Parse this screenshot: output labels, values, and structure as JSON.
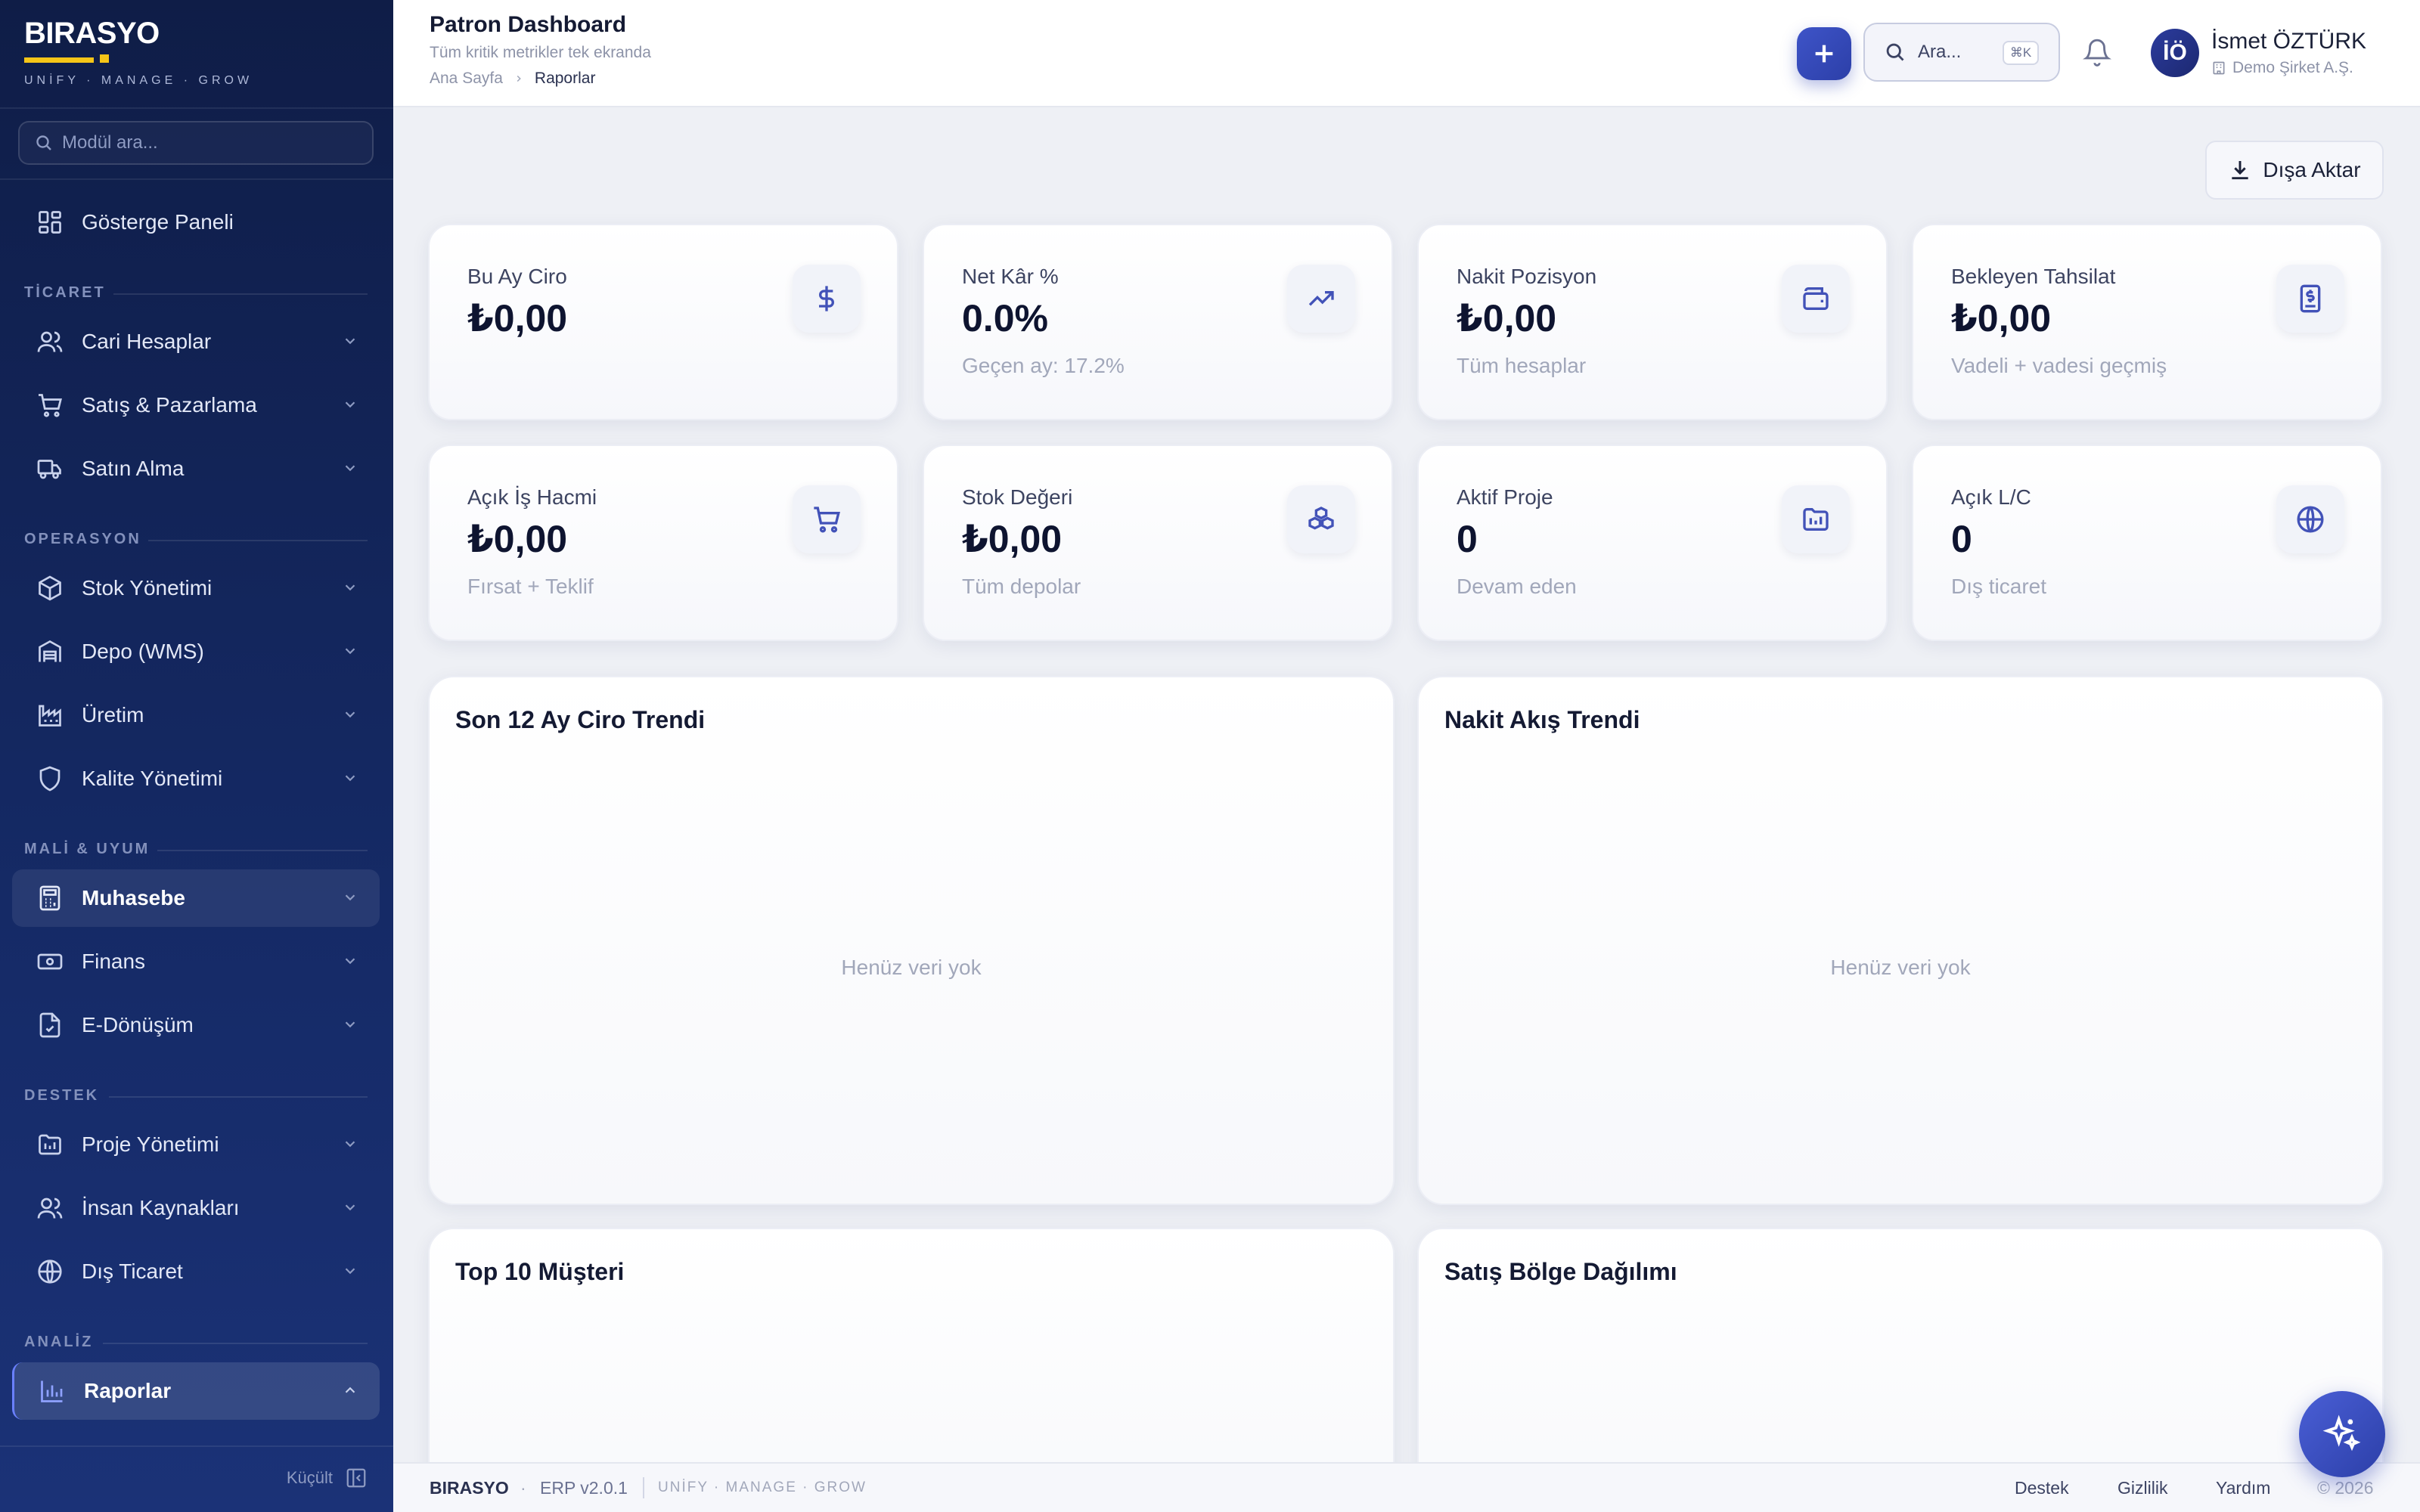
{
  "brand": {
    "name": "BIRASYO",
    "tagline": "UNİFY · MANAGE · GROW"
  },
  "sidebar": {
    "search_placeholder": "Modül ara...",
    "dashboard": "Gösterge Paneli",
    "sections": {
      "ticaret": "TİCARET",
      "operasyon": "OPERASYON",
      "mali": "MALİ & UYUM",
      "destek": "DESTEK",
      "analiz": "ANALİZ"
    },
    "items": {
      "cari": "Cari Hesaplar",
      "satis": "Satış & Pazarlama",
      "satin_alma": "Satın Alma",
      "stok": "Stok Yönetimi",
      "depo": "Depo (WMS)",
      "uretim": "Üretim",
      "kalite": "Kalite Yönetimi",
      "muhasebe": "Muhasebe",
      "finans": "Finans",
      "edonusum": "E-Dönüşüm",
      "proje": "Proje Yönetimi",
      "ik": "İnsan Kaynakları",
      "dis_ticaret": "Dış Ticaret",
      "raporlar": "Raporlar"
    },
    "collapse_label": "Küçült"
  },
  "header": {
    "title": "Patron Dashboard",
    "subtitle": "Tüm kritik metrikler tek ekranda",
    "breadcrumb": {
      "home": "Ana Sayfa",
      "current": "Raporlar"
    },
    "search_label": "Ara...",
    "search_shortcut": "⌘K",
    "user": {
      "initials": "İÖ",
      "name": "İsmet ÖZTÜRK",
      "company": "Demo Şirket A.Ş."
    }
  },
  "main": {
    "export_label": "Dışa Aktar",
    "kpis": [
      {
        "title": "Bu Ay Ciro",
        "value": "₺0,00",
        "sub": "",
        "icon": "dollar-icon"
      },
      {
        "title": "Net Kâr %",
        "value": "0.0%",
        "sub": "Geçen ay: 17.2%",
        "icon": "trend-up-icon"
      },
      {
        "title": "Nakit Pozisyon",
        "value": "₺0,00",
        "sub": "Tüm hesaplar",
        "icon": "wallet-icon"
      },
      {
        "title": "Bekleyen Tahsilat",
        "value": "₺0,00",
        "sub": "Vadeli + vadesi geçmiş",
        "icon": "invoice-icon"
      },
      {
        "title": "Açık İş Hacmi",
        "value": "₺0,00",
        "sub": "Fırsat + Teklif",
        "icon": "cart-icon"
      },
      {
        "title": "Stok Değeri",
        "value": "₺0,00",
        "sub": "Tüm depolar",
        "icon": "boxes-icon"
      },
      {
        "title": "Aktif Proje",
        "value": "0",
        "sub": "Devam eden",
        "icon": "project-icon"
      },
      {
        "title": "Açık L/C",
        "value": "0",
        "sub": "Dış ticaret",
        "icon": "globe-icon"
      }
    ],
    "cards": {
      "revenue_trend": {
        "title": "Son 12 Ay Ciro Trendi",
        "empty": "Henüz veri yok"
      },
      "cash_flow": {
        "title": "Nakit Akış Trendi",
        "empty": "Henüz veri yok"
      },
      "top_customers": {
        "title": "Top 10 Müşteri"
      },
      "region": {
        "title": "Satış Bölge Dağılımı"
      }
    }
  },
  "footer": {
    "brand": "BIRASYO",
    "dot": "·",
    "version": "ERP v2.0.1",
    "tagline": "UNİFY · MANAGE · GROW",
    "links": {
      "support": "Destek",
      "privacy": "Gizlilik",
      "help": "Yardım"
    },
    "copyright": "© 2026"
  },
  "colors": {
    "sidebar_bg": "#0f1d47",
    "accent": "#3e54c8",
    "brand_yellow": "#f5c518"
  }
}
